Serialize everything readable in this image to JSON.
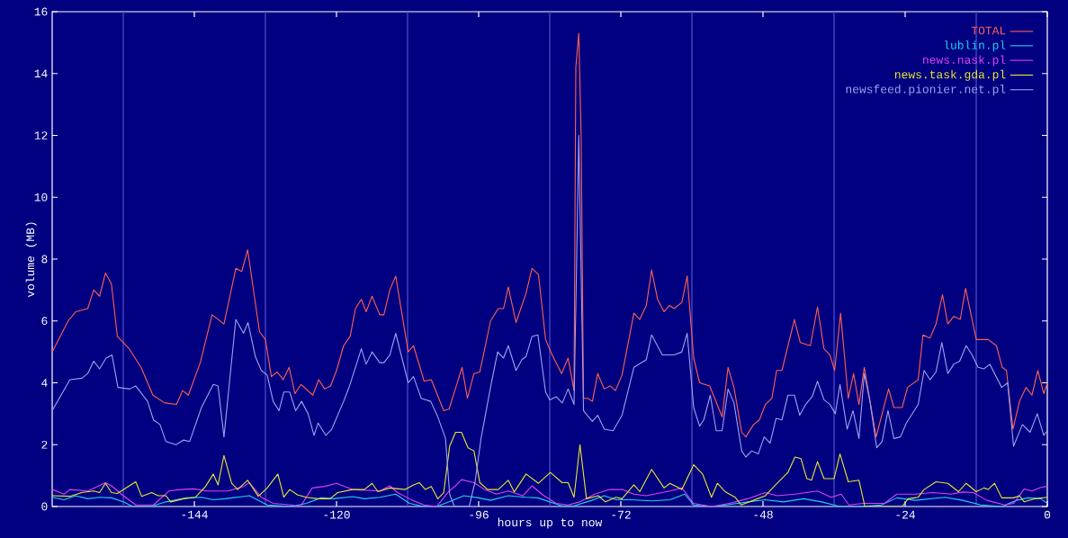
{
  "chart_data": {
    "type": "line",
    "xlabel": "hours up to now",
    "ylabel": "volume (MB)",
    "xlim": [
      -168,
      0
    ],
    "xticks": [
      -144,
      -120,
      -96,
      -72,
      -48,
      -24,
      0
    ],
    "ylim": [
      0,
      16
    ],
    "yticks": [
      0,
      2,
      4,
      6,
      8,
      10,
      12,
      14,
      16
    ],
    "legend": "top right",
    "ref_lines": [
      {
        "axis": "x",
        "value": -156,
        "color": "#5050d0"
      },
      {
        "axis": "x",
        "value": -132,
        "color": "#5050d0"
      },
      {
        "axis": "x",
        "value": -108,
        "color": "#5050d0"
      },
      {
        "axis": "x",
        "value": -84,
        "color": "#5050d0"
      },
      {
        "axis": "x",
        "value": -60,
        "color": "#5050d0"
      },
      {
        "axis": "x",
        "value": -36,
        "color": "#5050d0"
      },
      {
        "axis": "x",
        "value": -12,
        "color": "#5050d0"
      }
    ],
    "series": [
      {
        "name": "TOTAL",
        "color": "#ff6050",
        "x": [
          -168,
          -165.3,
          -164,
          -162,
          -161,
          -160,
          -159,
          -158,
          -157,
          -155,
          -153,
          -151,
          -149,
          -147,
          -146,
          -145,
          -143,
          -141,
          -139,
          -137,
          -136,
          -135,
          -133,
          -132,
          -131,
          -130,
          -129,
          -128,
          -127,
          -126,
          -124,
          -123,
          -122,
          -121,
          -120,
          -118.8,
          -117.7,
          -116.8,
          -115.8,
          -115,
          -114,
          -112.7,
          -112,
          -111,
          -110,
          -107.9,
          -107,
          -105.2,
          -104,
          -101.9,
          -101,
          -98.8,
          -97.9,
          -96.8,
          -95.8,
          -94,
          -92.7,
          -91.8,
          -91,
          -89.7,
          -88,
          -87,
          -85.9,
          -84.7,
          -83.6,
          -82,
          -80.9,
          -79.9,
          -79.6,
          -79.1,
          -78.7,
          -78.3,
          -77.6,
          -76.8,
          -75.9,
          -74.8,
          -73.8,
          -72.9,
          -71.8,
          -69.8,
          -68.8,
          -67.7,
          -66.8,
          -65.8,
          -64.7,
          -63.8,
          -63,
          -61.7,
          -60.8,
          -59.7,
          -58.7,
          -57,
          -54.9,
          -53.9,
          -52.9,
          -51.6,
          -50.9,
          -49.6,
          -48.6,
          -47.6,
          -46.5,
          -45.7,
          -44.8,
          -42.7,
          -41.7,
          -40,
          -38.8,
          -37.7,
          -36.7,
          -35.9,
          -34.9,
          -33.6,
          -32.7,
          -31.8,
          -30.9,
          -28.9,
          -26.8,
          -25.9,
          -24.5,
          -23.6,
          -21.8,
          -21,
          -19.8,
          -18.8,
          -17.7,
          -16.8,
          -15.8,
          -14.7,
          -13.8,
          -12,
          -10,
          -8.6,
          -7.6,
          -6.9,
          -5.8,
          -4.7,
          -3.6,
          -2.6,
          -1.6,
          -0.6,
          0
        ],
        "values": [
          5.0,
          6.0,
          6.3,
          6.4,
          7.0,
          6.8,
          7.55,
          7.2,
          5.5,
          5.1,
          4.5,
          3.6,
          3.35,
          3.3,
          3.75,
          3.6,
          4.65,
          6.2,
          5.9,
          7.7,
          7.6,
          8.3,
          5.65,
          5.4,
          4.2,
          4.35,
          4.1,
          4.5,
          3.65,
          3.95,
          3.6,
          4.1,
          3.8,
          3.9,
          4.4,
          5.2,
          5.5,
          6.4,
          6.7,
          6.3,
          6.8,
          6.2,
          6.2,
          7.0,
          7.45,
          5.0,
          5.2,
          4.05,
          4.1,
          3.1,
          3.15,
          4.5,
          3.5,
          4.3,
          4.35,
          6.0,
          6.4,
          6.4,
          7.1,
          5.95,
          6.9,
          7.7,
          7.5,
          5.4,
          4.9,
          4.3,
          4.8,
          3.75,
          14.2,
          15.3,
          12.0,
          3.5,
          3.5,
          3.4,
          4.3,
          3.8,
          3.9,
          3.75,
          4.25,
          6.25,
          6.05,
          6.5,
          7.65,
          6.7,
          6.3,
          6.5,
          6.4,
          6.6,
          7.45,
          4.8,
          4.0,
          3.9,
          2.9,
          4.5,
          3.85,
          2.4,
          2.25,
          2.65,
          2.8,
          3.3,
          3.5,
          4.4,
          4.4,
          6.05,
          5.3,
          5.2,
          6.45,
          5.1,
          4.9,
          4.4,
          6.25,
          3.5,
          4.3,
          3.3,
          4.5,
          2.25,
          3.8,
          3.2,
          3.2,
          3.85,
          4.1,
          5.55,
          5.45,
          5.9,
          6.85,
          5.9,
          6.15,
          6.05,
          7.05,
          5.4,
          5.4,
          5.2,
          4.5,
          4.4,
          2.5,
          3.4,
          3.85,
          3.6,
          4.4,
          3.65,
          4.0
        ]
      },
      {
        "name": "lublin.pl",
        "color": "#20d0f0",
        "x": [
          -168,
          -166,
          -164,
          -162,
          -160,
          -158,
          -156,
          -154.4,
          -151.4,
          -148.8,
          -145.3,
          -142.8,
          -140.8,
          -138.8,
          -134.7,
          -133.2,
          -131.7,
          -127.6,
          -125.1,
          -122.6,
          -120.6,
          -117.3,
          -115.3,
          -112.7,
          -110,
          -107.7,
          -105.2,
          -103.1,
          -101,
          -98.5,
          -96,
          -94,
          -91,
          -88,
          -86,
          -84,
          -82,
          -79.9,
          -76.9,
          -74.8,
          -72.8,
          -70.3,
          -66.8,
          -63.7,
          -61.2,
          -59.7,
          -56.7,
          -54.2,
          -50.6,
          -47.6,
          -44.6,
          -41.1,
          -38.1,
          -35,
          -31.6,
          -28,
          -25.4,
          -22.3,
          -17.3,
          -14.3,
          -11.2,
          -7.7,
          -5.2,
          -3.2,
          -1.1,
          0
        ],
        "values": [
          0.3,
          0.22,
          0.35,
          0.25,
          0.3,
          0.28,
          0.15,
          0,
          0,
          0.15,
          0.28,
          0.3,
          0.22,
          0.25,
          0.35,
          0.2,
          0.05,
          0,
          0.1,
          0.28,
          0.25,
          0.32,
          0.25,
          0.3,
          0.4,
          0.1,
          0,
          0,
          0.15,
          0.35,
          0.28,
          0.2,
          0.35,
          0.3,
          0.28,
          0.15,
          0.02,
          0.02,
          0.2,
          0.35,
          0.22,
          0.22,
          0.18,
          0.22,
          0.4,
          0.05,
          0,
          0.05,
          0.15,
          0.22,
          0.15,
          0.25,
          0.15,
          0,
          0,
          0.05,
          0.28,
          0.2,
          0.3,
          0.2,
          0.05,
          0,
          0.2,
          0.28,
          0.25,
          0.1
        ]
      },
      {
        "name": "news.nask.pl",
        "color": "#e040f0",
        "x": [
          -168,
          -166,
          -165,
          -162,
          -159,
          -158,
          -156,
          -153.9,
          -150.9,
          -148.3,
          -146.3,
          -144.1,
          -141.8,
          -138.3,
          -135.7,
          -134.7,
          -132.7,
          -130.7,
          -127.6,
          -126.1,
          -124.1,
          -122,
          -120,
          -117.3,
          -112.7,
          -111,
          -109.7,
          -107.2,
          -105.2,
          -103.1,
          -101,
          -99.9,
          -98.9,
          -96.8,
          -95,
          -93,
          -91,
          -88.5,
          -87,
          -85,
          -82.9,
          -80.9,
          -78.9,
          -76.4,
          -73.9,
          -71.8,
          -69.8,
          -67.7,
          -63.7,
          -61.7,
          -59.7,
          -56.7,
          -53.7,
          -50.6,
          -47.6,
          -45.6,
          -42.6,
          -38.8,
          -36.5,
          -34.8,
          -33.5,
          -31,
          -27.5,
          -25.4,
          -22.3,
          -19.3,
          -16.3,
          -14.3,
          -12.5,
          -10.2,
          -7.2,
          -5.7,
          -3.9,
          -2.6,
          -1.1,
          0
        ],
        "values": [
          0.55,
          0.4,
          0.55,
          0.5,
          0.77,
          0.67,
          0.35,
          0.05,
          0.05,
          0.5,
          0.55,
          0.57,
          0.5,
          0.5,
          0.65,
          0.77,
          0.3,
          0.1,
          0.05,
          0,
          0.6,
          0.65,
          0.75,
          0.55,
          0.5,
          0.67,
          0.45,
          0.2,
          0.05,
          0,
          0.5,
          0.67,
          0.87,
          0.77,
          0.55,
          0.4,
          0.5,
          0.35,
          0.67,
          0.35,
          0.1,
          0.05,
          0.15,
          0.4,
          0.55,
          0.55,
          0.4,
          0.35,
          0.5,
          0.6,
          0.1,
          0,
          0.1,
          0.25,
          0.45,
          0.35,
          0.4,
          0.5,
          0.3,
          0.4,
          0.05,
          0.1,
          0.1,
          0.4,
          0.4,
          0.45,
          0.4,
          0.47,
          0.45,
          0.2,
          0.05,
          0.1,
          0.57,
          0.5,
          0.62,
          0.65
        ]
      },
      {
        "name": "news.task.gda.pl",
        "color": "#e8e830",
        "x": [
          -168,
          -165,
          -163,
          -161,
          -160,
          -159,
          -158,
          -157,
          -153.9,
          -152.9,
          -151.2,
          -150.1,
          -148.8,
          -148,
          -145.8,
          -143.8,
          -142.1,
          -140.8,
          -140,
          -139,
          -137.7,
          -136.7,
          -135,
          -133.2,
          -131.7,
          -129.9,
          -128.9,
          -127.9,
          -126.6,
          -125.1,
          -123.1,
          -121.1,
          -119.8,
          -117.3,
          -115.3,
          -114,
          -113,
          -111,
          -108.4,
          -107,
          -106,
          -105,
          -104,
          -102.9,
          -101.9,
          -100.9,
          -99.9,
          -98.9,
          -97.8,
          -96.8,
          -95.8,
          -94.5,
          -92.7,
          -91,
          -90,
          -88,
          -85.9,
          -83.9,
          -81.9,
          -80.9,
          -79.9,
          -78.9,
          -77.8,
          -75.8,
          -74.6,
          -72.8,
          -71.8,
          -69.8,
          -68.8,
          -66.8,
          -64.7,
          -63.7,
          -61.7,
          -59.7,
          -58.2,
          -56.7,
          -55.7,
          -54.4,
          -52.7,
          -51.7,
          -49.6,
          -47.6,
          -45.6,
          -43.8,
          -42.6,
          -41.6,
          -40.6,
          -39.8,
          -38.8,
          -37.7,
          -36,
          -35,
          -33.6,
          -31.8,
          -30.8,
          -24.5,
          -23.5,
          -21.8,
          -20.8,
          -18.8,
          -16.8,
          -15,
          -13.7,
          -12,
          -10.7,
          -10,
          -8.9,
          -7.7,
          -5.7,
          -4.7,
          -3.9,
          -2.2,
          0
        ],
        "values": [
          0.35,
          0.33,
          0.45,
          0.5,
          0.45,
          0.75,
          0.45,
          0.42,
          0.8,
          0.33,
          0.45,
          0.35,
          0.35,
          0.15,
          0.25,
          0.3,
          0.65,
          1.05,
          0.7,
          1.65,
          0.75,
          0.55,
          0.85,
          0.33,
          0.6,
          1.05,
          0.3,
          0.55,
          0.38,
          0.3,
          0.25,
          0.25,
          0.45,
          0.55,
          0.55,
          0.75,
          0.48,
          0.6,
          0.55,
          0.7,
          0.77,
          0.55,
          0.65,
          0.25,
          0.45,
          1.95,
          2.4,
          2.4,
          1.9,
          1.8,
          0.77,
          0.55,
          0.55,
          0.85,
          0.47,
          1.05,
          0.75,
          1.1,
          0.77,
          0.77,
          0.3,
          2.0,
          0.25,
          0.35,
          0.15,
          0.3,
          0.25,
          0.7,
          0.48,
          1.2,
          0.6,
          0.75,
          0.55,
          1.35,
          1.05,
          0.3,
          0.75,
          0.48,
          0.3,
          0.05,
          0.2,
          0.35,
          0.75,
          1.1,
          1.6,
          1.55,
          0.9,
          0.85,
          1.45,
          0.9,
          0.9,
          1.7,
          0.8,
          0.85,
          0,
          0,
          0.25,
          0.3,
          0.55,
          0.8,
          0.75,
          0.48,
          0.75,
          0.48,
          0.6,
          0.55,
          0.75,
          0.28,
          0.28,
          0.35,
          0.15,
          0.25,
          0.3
        ]
      },
      {
        "name": "newsfeed.pionier.net.pl",
        "color": "#a0a0f0",
        "x": [
          -168,
          -165,
          -163,
          -162,
          -161,
          -160,
          -158.9,
          -157.9,
          -156.9,
          -154.9,
          -153.9,
          -151.9,
          -150.9,
          -149.8,
          -148.8,
          -147.1,
          -145.8,
          -144.8,
          -142.8,
          -140.8,
          -140,
          -139,
          -137,
          -135.7,
          -134.95,
          -133.7,
          -132.7,
          -131.7,
          -130.7,
          -129.7,
          -128.9,
          -127.9,
          -126.9,
          -125.9,
          -124.8,
          -123.8,
          -123.1,
          -121.8,
          -120.8,
          -118.8,
          -117.8,
          -115.8,
          -115,
          -114,
          -112.7,
          -112,
          -111,
          -110,
          -107.9,
          -107,
          -105.7,
          -104.1,
          -102.9,
          -101.6,
          -100.9,
          -100.1,
          -97.6,
          -96.6,
          -95.6,
          -94,
          -92.8,
          -91.8,
          -91,
          -89.7,
          -88.7,
          -88,
          -87,
          -86,
          -84.7,
          -84,
          -82.9,
          -81.9,
          -80.9,
          -79.9,
          -79.5,
          -79.1,
          -78.7,
          -78.3,
          -77.9,
          -76.8,
          -75.9,
          -74.8,
          -73.3,
          -71.8,
          -69.8,
          -67.7,
          -66.8,
          -65,
          -63,
          -61.7,
          -60.8,
          -59.7,
          -58.7,
          -58,
          -56.9,
          -55.9,
          -54.9,
          -53.9,
          -52.9,
          -51.6,
          -50.9,
          -49.9,
          -48.8,
          -47.8,
          -46.8,
          -45.8,
          -44.8,
          -43.8,
          -42.7,
          -41.8,
          -40.8,
          -39.7,
          -38.8,
          -37.7,
          -36.7,
          -35.8,
          -35,
          -33.8,
          -32.8,
          -31.8,
          -30.9,
          -29.9,
          -28.8,
          -27.9,
          -26.9,
          -25.9,
          -24.8,
          -23.8,
          -21.8,
          -20.8,
          -19.8,
          -18.8,
          -17.8,
          -16.8,
          -15.8,
          -14.8,
          -13.7,
          -12.7,
          -11.7,
          -10.7,
          -9.7,
          -7.7,
          -6.7,
          -5.7,
          -4.2,
          -2.9,
          -1.7,
          -0.6,
          0
        ],
        "values": [
          3.1,
          4.1,
          4.15,
          4.3,
          4.7,
          4.45,
          4.8,
          4.9,
          3.85,
          3.8,
          3.9,
          3.4,
          2.8,
          2.65,
          2.1,
          2.0,
          2.15,
          2.1,
          3.2,
          3.95,
          3.9,
          2.25,
          6.05,
          5.6,
          5.95,
          4.85,
          4.4,
          4.25,
          3.4,
          3.1,
          3.7,
          3.7,
          3.1,
          3.4,
          3.0,
          2.3,
          2.7,
          2.3,
          2.5,
          3.4,
          3.9,
          5.1,
          4.6,
          5.0,
          4.65,
          4.65,
          4.9,
          5.6,
          4.0,
          4.2,
          3.5,
          3.4,
          2.9,
          2.2,
          0.4,
          0,
          0,
          0.8,
          2.2,
          3.85,
          5.0,
          4.8,
          5.2,
          4.4,
          4.75,
          4.85,
          5.5,
          5.55,
          3.7,
          3.45,
          3.55,
          3.35,
          3.8,
          3.3,
          7.5,
          12.0,
          7.5,
          3.1,
          3.0,
          2.75,
          2.95,
          2.5,
          2.45,
          2.95,
          4.5,
          4.75,
          5.55,
          4.9,
          4.9,
          5.0,
          5.6,
          3.2,
          2.6,
          2.8,
          3.6,
          2.45,
          2.45,
          3.8,
          3.35,
          1.8,
          1.6,
          1.8,
          1.7,
          2.25,
          2.05,
          2.85,
          2.8,
          3.6,
          3.6,
          2.95,
          3.3,
          3.55,
          4.05,
          3.45,
          3.3,
          3.0,
          3.95,
          2.5,
          3.1,
          2.2,
          4.3,
          3.35,
          1.9,
          2.1,
          3.1,
          2.2,
          2.25,
          2.7,
          3.3,
          4.4,
          4.1,
          4.35,
          5.3,
          4.3,
          4.6,
          4.7,
          5.2,
          4.9,
          4.5,
          4.45,
          4.6,
          3.85,
          4.0,
          1.95,
          2.65,
          2.4,
          3.0,
          2.3,
          2.45
        ]
      }
    ]
  }
}
